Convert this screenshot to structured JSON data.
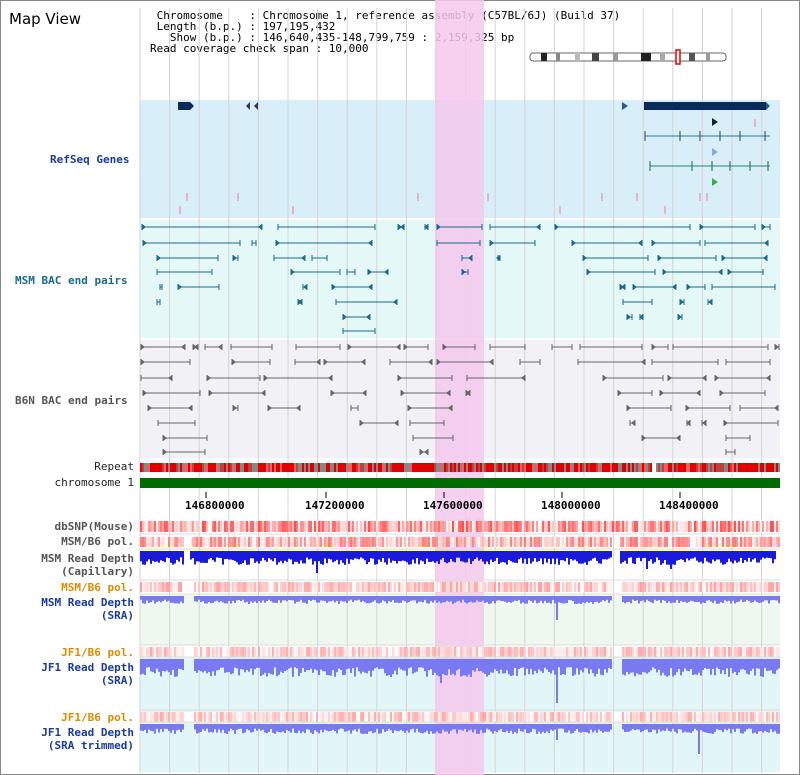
{
  "title": "Map View",
  "info": {
    "line1": " Chromosome    : Chromosome 1, reference assembly (C57BL/6J) (Build 37)",
    "line2": " Length (b.p.) : 197,195,432",
    "line3": "   Show (b.p.) : 146,640,435-148,799,759 : 2,159,325 bp",
    "line4": "Read coverage check span : 10,000"
  },
  "tracks": {
    "refseq": "RefSeq Genes",
    "msm_bac": "MSM BAC end pairs",
    "b6n_bac": "B6N BAC end pairs",
    "repeat": "Repeat",
    "chromosome": "chromosome 1",
    "dbsnp": "dbSNP(Mouse)",
    "msm_b6_pol1": "MSM/B6 pol.",
    "msm_read_depth_cap": "MSM Read Depth\n(Capillary)",
    "msm_b6_pol2": "MSM/B6 pol.",
    "msm_read_depth_sra": "MSM Read Depth\n(SRA)",
    "jf1_b6_pol1": "JF1/B6 pol.",
    "jf1_read_depth_sra": "JF1 Read Depth\n(SRA)",
    "jf1_b6_pol2": "JF1/B6 pol.",
    "jf1_read_depth_trim": "JF1 Read Depth\n(SRA trimmed)"
  },
  "axis": {
    "ticks": [
      "146800000",
      "147200000",
      "147600000",
      "148000000",
      "148400000"
    ]
  },
  "colors": {
    "highlight": "#f5c8ec",
    "refseq_bg": "#d8eef8",
    "bac_bg": "#e4f8f8",
    "b6n_bg": "#f2f2f6",
    "chromosome_bar": "#006b00",
    "depth_blue": "#1a1ad8",
    "depth_light": "#7a7af0"
  }
}
